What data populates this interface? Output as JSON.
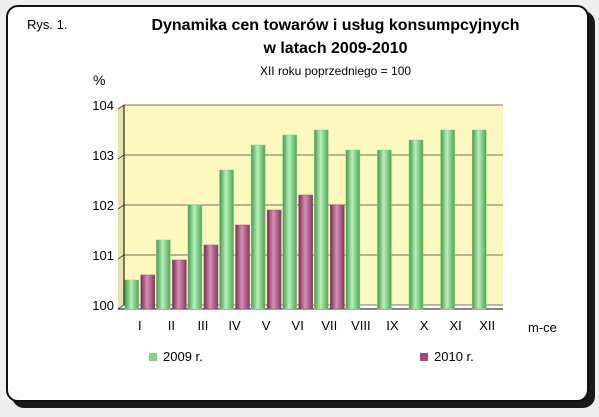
{
  "figure_label": "Rys. 1.",
  "colors": {
    "series_2009": "#7cd681",
    "series_2010": "#a8457a",
    "plot_bg": "#fcf8be",
    "grid": "#444444"
  },
  "chart_data": {
    "type": "bar",
    "title": "Dynamika cen towarów i usług konsumpcyjnych",
    "title_line2": "w latach 2009-2010",
    "subtitle": "XII roku poprzedniego = 100",
    "ylabel": "%",
    "xlabel": "m-ce",
    "ylim": [
      100,
      104
    ],
    "yticks": [
      100,
      101,
      102,
      103,
      104
    ],
    "grid": true,
    "legend_position": "bottom",
    "categories": [
      "I",
      "II",
      "III",
      "IV",
      "V",
      "VI",
      "VII",
      "VIII",
      "IX",
      "X",
      "XI",
      "XII"
    ],
    "series": [
      {
        "name": "2009 r.",
        "values": [
          100.5,
          101.3,
          102.0,
          102.7,
          103.2,
          103.4,
          103.5,
          103.1,
          103.1,
          103.3,
          103.5,
          103.5
        ]
      },
      {
        "name": "2010 r.",
        "values": [
          100.6,
          100.9,
          101.2,
          101.6,
          101.9,
          102.2,
          102.0,
          null,
          null,
          null,
          null,
          null
        ]
      }
    ]
  }
}
